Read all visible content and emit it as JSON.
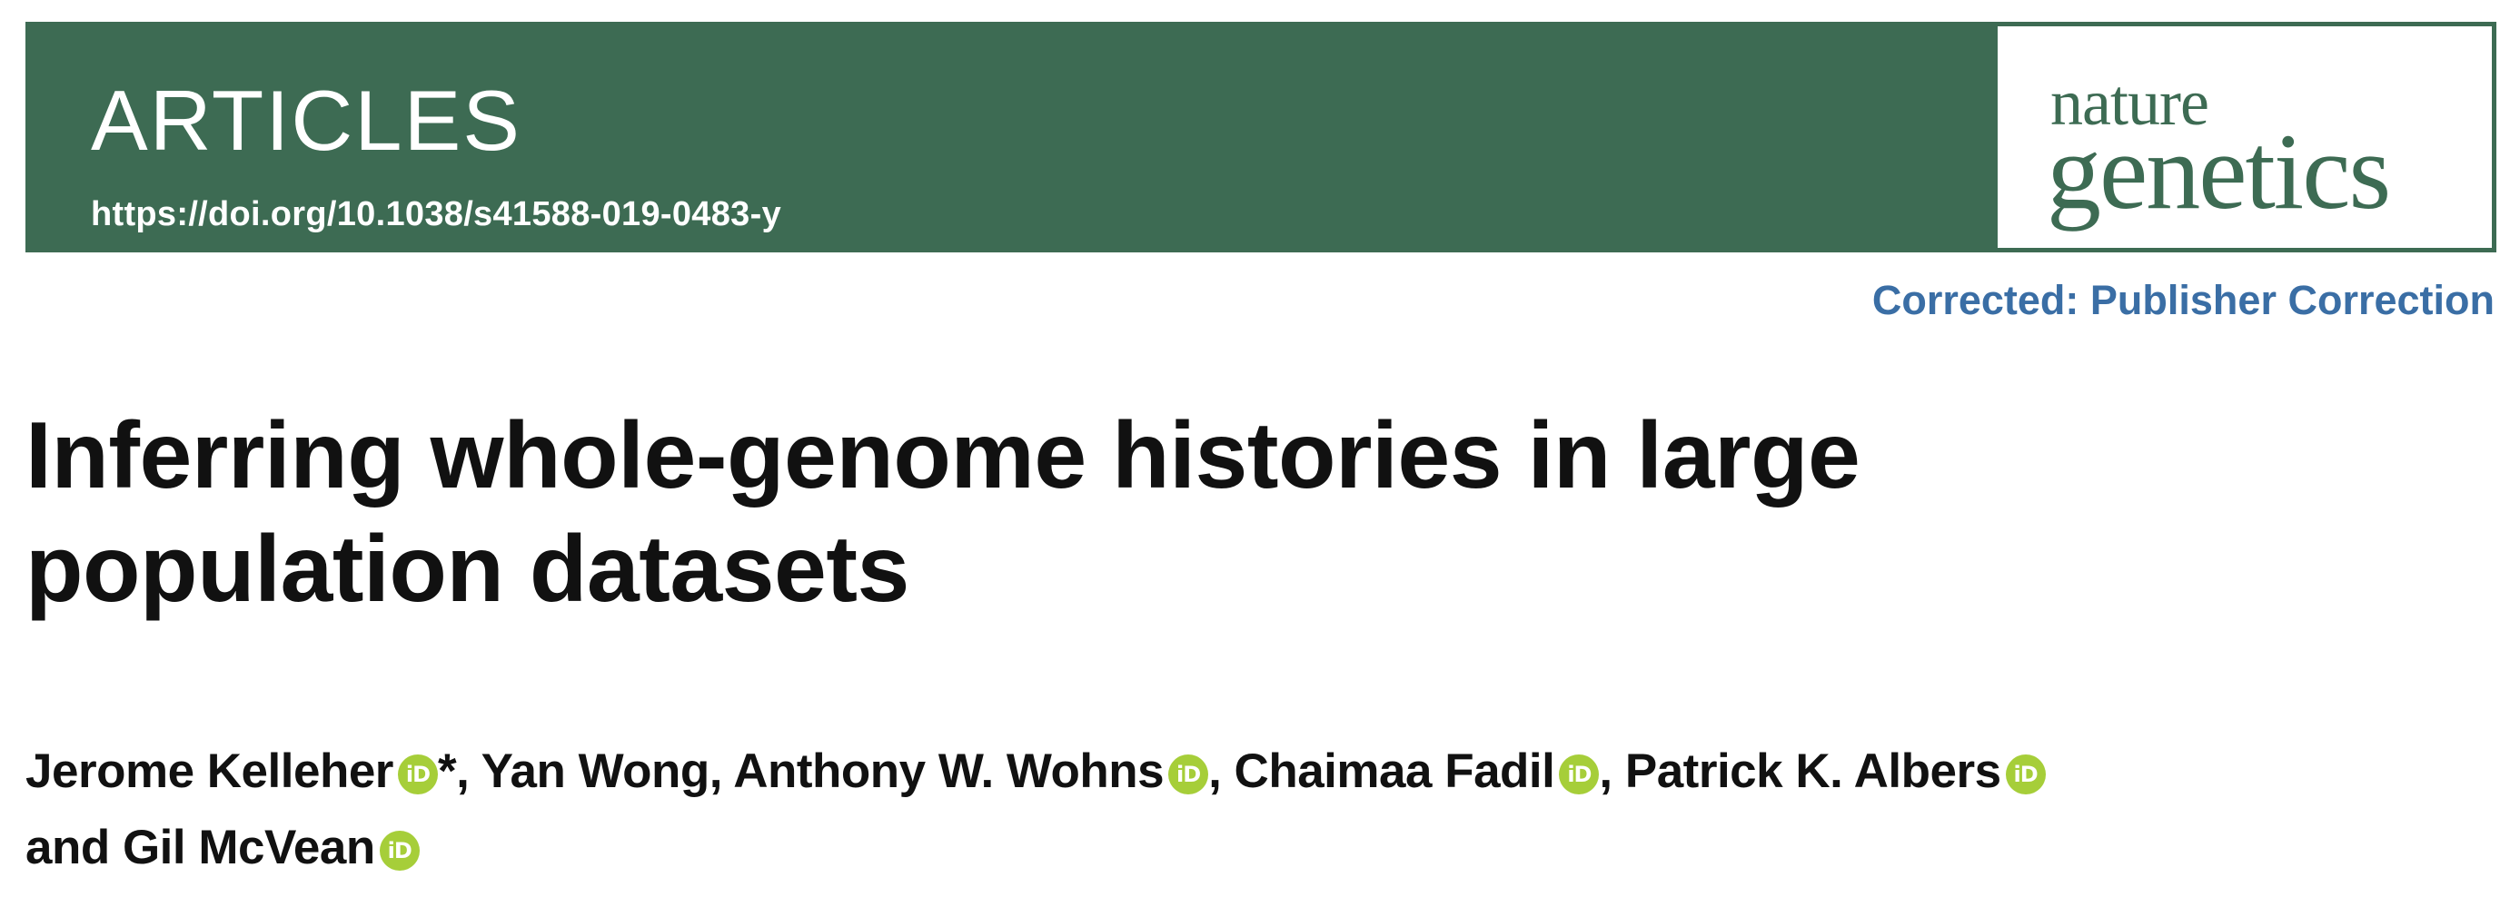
{
  "header": {
    "section": "ARTICLES",
    "doi": "https://doi.org/10.1038/s41588-019-0483-y",
    "background_color": "#3d6b53"
  },
  "journal_logo": {
    "line1": "nature",
    "line2": "genetics",
    "color": "#3d6b53"
  },
  "correction": {
    "label": "Corrected: Publisher Correction",
    "color": "#3a6ea5"
  },
  "article": {
    "title_lines": [
      "Inferring whole-genome histories in large",
      "population datasets"
    ]
  },
  "authors": {
    "line1": [
      {
        "name": "Jerome Kelleher",
        "orcid": true,
        "suffix": "*, "
      },
      {
        "name": "Yan Wong",
        "orcid": false,
        "suffix": ", "
      },
      {
        "name": "Anthony W. Wohns",
        "orcid": true,
        "suffix": ", "
      },
      {
        "name": "Chaimaa Fadil",
        "orcid": true,
        "suffix": ", "
      },
      {
        "name": "Patrick K. Albers",
        "orcid": true,
        "suffix": ""
      }
    ],
    "line2": [
      {
        "prefix": "and ",
        "name": "Gil McVean",
        "orcid": true,
        "suffix": ""
      }
    ],
    "orcid_icon": {
      "name": "orcid-icon",
      "glyph": "iD",
      "color": "#a6ce39"
    }
  }
}
